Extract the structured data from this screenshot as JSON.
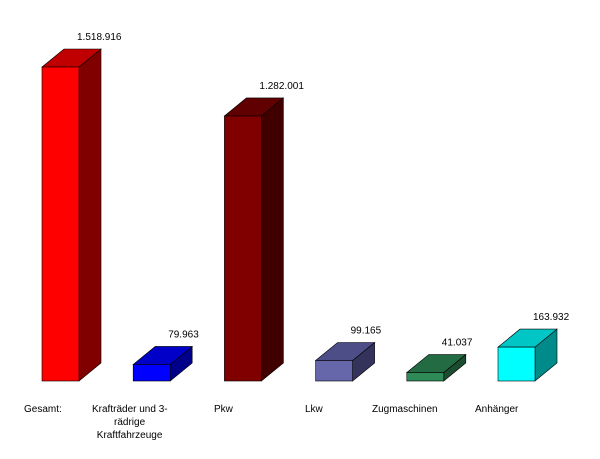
{
  "chart_data": {
    "type": "bar",
    "style": "3d",
    "categories": [
      [
        "Gesamt:"
      ],
      [
        "Krafträder und 3-",
        "rädrige",
        "Kraftfahrzeuge"
      ],
      [
        "Pkw"
      ],
      [
        "Lkw"
      ],
      [
        "Zugmaschinen"
      ],
      [
        "Anhänger"
      ]
    ],
    "values": [
      1518916,
      79963,
      1282001,
      99165,
      41037,
      163932
    ],
    "value_labels": [
      "1.518.916",
      "79.963",
      "1.282.001",
      "99.165",
      "41.037",
      "163.932"
    ],
    "colors": [
      {
        "front": "#ff0000",
        "side": "#800000",
        "top": "#c00000"
      },
      {
        "front": "#0000ff",
        "side": "#00008a",
        "top": "#0000c8"
      },
      {
        "front": "#800000",
        "side": "#400000",
        "top": "#600000"
      },
      {
        "front": "#6666aa",
        "side": "#33335c",
        "top": "#4d4d88"
      },
      {
        "front": "#2e8b57",
        "side": "#1a4d30",
        "top": "#236b43"
      },
      {
        "front": "#00ffff",
        "side": "#008b8b",
        "top": "#00c6c6"
      }
    ],
    "ylim": [
      0,
      1518916
    ],
    "grid": false,
    "legend": "none",
    "title": "",
    "xlabel": "",
    "ylabel": ""
  }
}
